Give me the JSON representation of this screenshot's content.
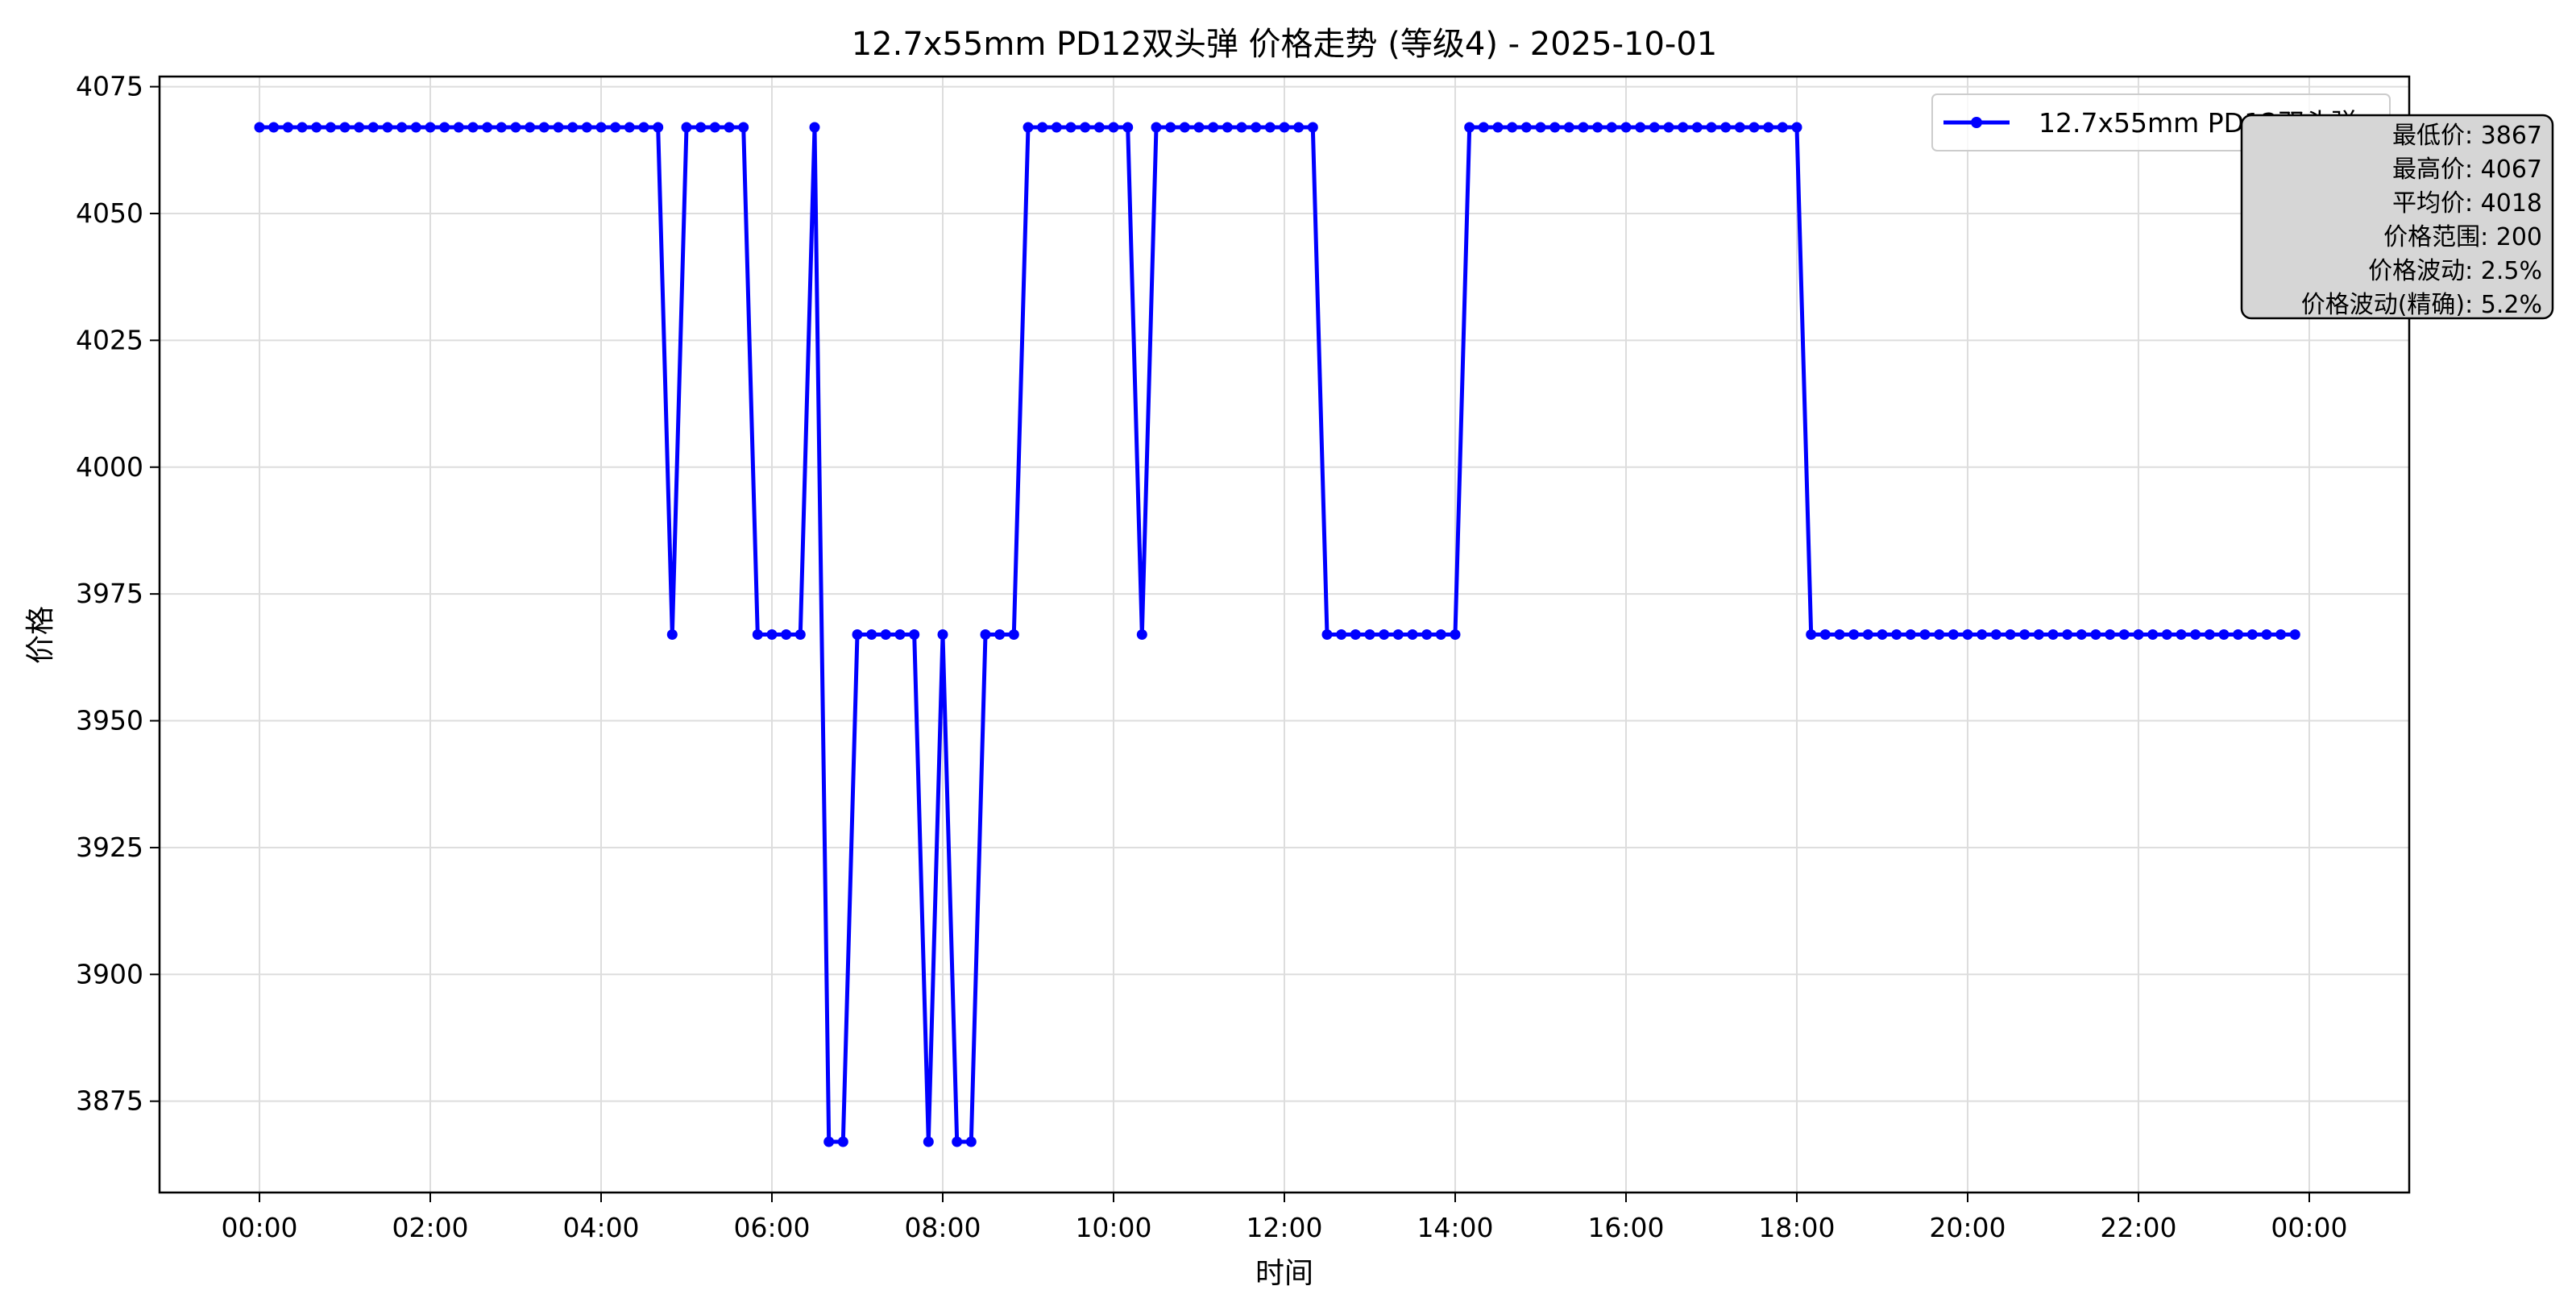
{
  "chart_data": {
    "type": "line",
    "title": "12.7x55mm PD12双头弹 价格走势 (等级4) - 2025-10-01",
    "xlabel": "时间",
    "ylabel": "价格",
    "x_tick_labels": [
      "00:00",
      "02:00",
      "04:00",
      "06:00",
      "08:00",
      "10:00",
      "12:00",
      "14:00",
      "16:00",
      "18:00",
      "20:00",
      "22:00",
      "00:00"
    ],
    "x_ticks_hours": [
      0,
      2,
      4,
      6,
      8,
      10,
      12,
      14,
      16,
      18,
      20,
      22,
      24
    ],
    "x_range_hours": [
      -1.17,
      25.17
    ],
    "sample_interval_minutes": 10,
    "y_ticks": [
      3875,
      3900,
      3925,
      3950,
      3975,
      4000,
      4025,
      4050,
      4075
    ],
    "ylim": [
      3857,
      4077
    ],
    "grid": true,
    "legend_position": "top-right",
    "series": [
      {
        "name": "12.7x55mm PD12双头弹",
        "color": "#0000ff",
        "marker": "circle",
        "start_time": "00:00",
        "values": [
          4067,
          4067,
          4067,
          4067,
          4067,
          4067,
          4067,
          4067,
          4067,
          4067,
          4067,
          4067,
          4067,
          4067,
          4067,
          4067,
          4067,
          4067,
          4067,
          4067,
          4067,
          4067,
          4067,
          4067,
          4067,
          4067,
          4067,
          4067,
          4067,
          3967,
          4067,
          4067,
          4067,
          4067,
          4067,
          3967,
          3967,
          3967,
          3967,
          4067,
          3867,
          3867,
          3967,
          3967,
          3967,
          3967,
          3967,
          3867,
          3967,
          3867,
          3867,
          3967,
          3967,
          3967,
          4067,
          4067,
          4067,
          4067,
          4067,
          4067,
          4067,
          4067,
          3967,
          4067,
          4067,
          4067,
          4067,
          4067,
          4067,
          4067,
          4067,
          4067,
          4067,
          4067,
          4067,
          3967,
          3967,
          3967,
          3967,
          3967,
          3967,
          3967,
          3967,
          3967,
          3967,
          4067,
          4067,
          4067,
          4067,
          4067,
          4067,
          4067,
          4067,
          4067,
          4067,
          4067,
          4067,
          4067,
          4067,
          4067,
          4067,
          4067,
          4067,
          4067,
          4067,
          4067,
          4067,
          4067,
          4067,
          3967,
          3967,
          3967,
          3967,
          3967,
          3967,
          3967,
          3967,
          3967,
          3967,
          3967,
          3967,
          3967,
          3967,
          3967,
          3967,
          3967,
          3967,
          3967,
          3967,
          3967,
          3967,
          3967,
          3967,
          3967,
          3967,
          3967,
          3967,
          3967,
          3967,
          3967,
          3967,
          3967,
          3967,
          3967
        ]
      }
    ],
    "stats_box": [
      "最低价: 3867",
      "最高价: 4067",
      "平均价: 4018",
      "价格范围: 200",
      "价格波动: 2.5%",
      "价格波动(精确): 5.2%"
    ]
  }
}
